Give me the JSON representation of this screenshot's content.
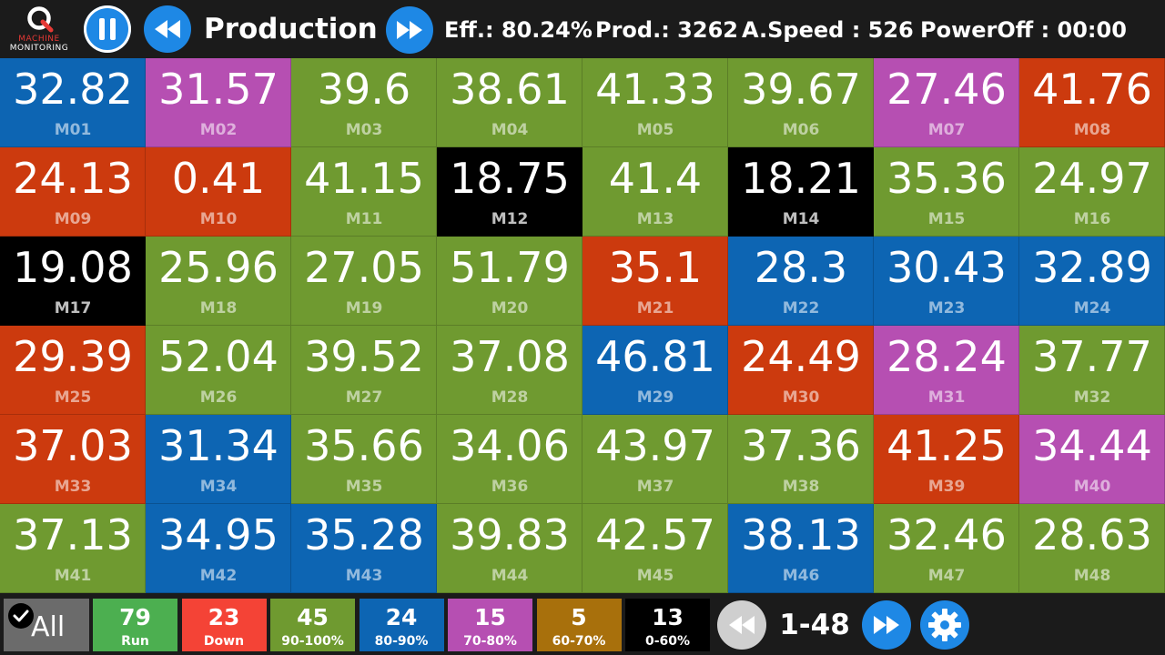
{
  "app": {
    "logo_line1": "MACHINE",
    "logo_line2": "MONITORING",
    "title": "Production"
  },
  "header_stats": {
    "efficiency": "Eff.: 80.24%",
    "production": "Prod.: 3262",
    "avg_speed": "A.Speed : 526",
    "power_off": "PowerOff : 00:00"
  },
  "icons": {
    "logo": "q-logo-icon",
    "pause": "pause-icon",
    "rewind": "rewind-icon",
    "fast_forward": "fast-forward-icon",
    "check": "check-icon",
    "settings": "gear-icon"
  },
  "status_colors": {
    "green": "#6f9a30",
    "blue": "#0d65b3",
    "purple": "#b64fb2",
    "red": "#cc3a0e",
    "black": "#000000"
  },
  "machines": [
    {
      "name": "M01",
      "value": "32.82",
      "status": "blue"
    },
    {
      "name": "M02",
      "value": "31.57",
      "status": "purple"
    },
    {
      "name": "M03",
      "value": "39.6",
      "status": "green"
    },
    {
      "name": "M04",
      "value": "38.61",
      "status": "green"
    },
    {
      "name": "M05",
      "value": "41.33",
      "status": "green"
    },
    {
      "name": "M06",
      "value": "39.67",
      "status": "green"
    },
    {
      "name": "M07",
      "value": "27.46",
      "status": "purple"
    },
    {
      "name": "M08",
      "value": "41.76",
      "status": "red"
    },
    {
      "name": "M09",
      "value": "24.13",
      "status": "red"
    },
    {
      "name": "M10",
      "value": "0.41",
      "status": "red"
    },
    {
      "name": "M11",
      "value": "41.15",
      "status": "green"
    },
    {
      "name": "M12",
      "value": "18.75",
      "status": "black"
    },
    {
      "name": "M13",
      "value": "41.4",
      "status": "green"
    },
    {
      "name": "M14",
      "value": "18.21",
      "status": "black"
    },
    {
      "name": "M15",
      "value": "35.36",
      "status": "green"
    },
    {
      "name": "M16",
      "value": "24.97",
      "status": "green"
    },
    {
      "name": "M17",
      "value": "19.08",
      "status": "black"
    },
    {
      "name": "M18",
      "value": "25.96",
      "status": "green"
    },
    {
      "name": "M19",
      "value": "27.05",
      "status": "green"
    },
    {
      "name": "M20",
      "value": "51.79",
      "status": "green"
    },
    {
      "name": "M21",
      "value": "35.1",
      "status": "red"
    },
    {
      "name": "M22",
      "value": "28.3",
      "status": "blue"
    },
    {
      "name": "M23",
      "value": "30.43",
      "status": "blue"
    },
    {
      "name": "M24",
      "value": "32.89",
      "status": "blue"
    },
    {
      "name": "M25",
      "value": "29.39",
      "status": "red"
    },
    {
      "name": "M26",
      "value": "52.04",
      "status": "green"
    },
    {
      "name": "M27",
      "value": "39.52",
      "status": "green"
    },
    {
      "name": "M28",
      "value": "37.08",
      "status": "green"
    },
    {
      "name": "M29",
      "value": "46.81",
      "status": "blue"
    },
    {
      "name": "M30",
      "value": "24.49",
      "status": "red"
    },
    {
      "name": "M31",
      "value": "28.24",
      "status": "purple"
    },
    {
      "name": "M32",
      "value": "37.77",
      "status": "green"
    },
    {
      "name": "M33",
      "value": "37.03",
      "status": "red"
    },
    {
      "name": "M34",
      "value": "31.34",
      "status": "blue"
    },
    {
      "name": "M35",
      "value": "35.66",
      "status": "green"
    },
    {
      "name": "M36",
      "value": "34.06",
      "status": "green"
    },
    {
      "name": "M37",
      "value": "43.97",
      "status": "green"
    },
    {
      "name": "M38",
      "value": "37.36",
      "status": "green"
    },
    {
      "name": "M39",
      "value": "41.25",
      "status": "red"
    },
    {
      "name": "M40",
      "value": "34.44",
      "status": "purple"
    },
    {
      "name": "M41",
      "value": "37.13",
      "status": "green"
    },
    {
      "name": "M42",
      "value": "34.95",
      "status": "blue"
    },
    {
      "name": "M43",
      "value": "35.28",
      "status": "blue"
    },
    {
      "name": "M44",
      "value": "39.83",
      "status": "green"
    },
    {
      "name": "M45",
      "value": "42.57",
      "status": "green"
    },
    {
      "name": "M46",
      "value": "38.13",
      "status": "blue"
    },
    {
      "name": "M47",
      "value": "32.46",
      "status": "green"
    },
    {
      "name": "M48",
      "value": "28.63",
      "status": "green"
    }
  ],
  "filters": {
    "all_label": "All",
    "items": [
      {
        "count": "79",
        "label": "Run",
        "color": "#4caf50"
      },
      {
        "count": "23",
        "label": "Down",
        "color": "#f44336"
      },
      {
        "count": "45",
        "label": "90-100%",
        "color": "#6f9a30"
      },
      {
        "count": "24",
        "label": "80-90%",
        "color": "#0d65b3"
      },
      {
        "count": "15",
        "label": "70-80%",
        "color": "#b64fb2"
      },
      {
        "count": "5",
        "label": "60-70%",
        "color": "#a8700c"
      },
      {
        "count": "13",
        "label": "0-60%",
        "color": "#000000"
      }
    ]
  },
  "pagination": {
    "range": "1-48"
  }
}
